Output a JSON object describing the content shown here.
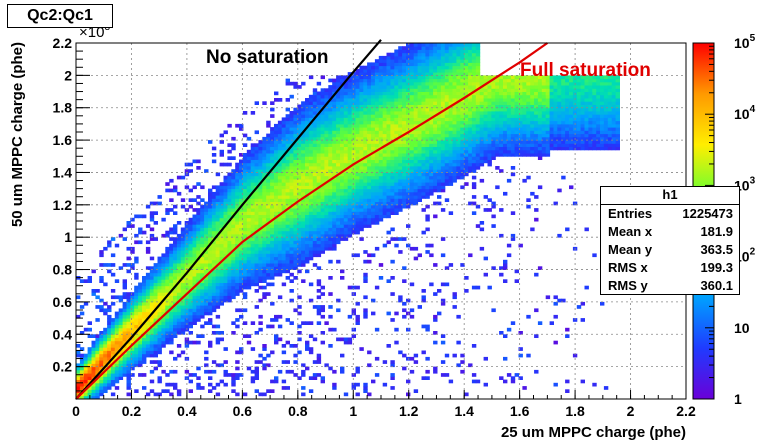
{
  "chart_data": {
    "type": "heatmap",
    "title": "Qc2:Qc1",
    "xlabel": "25 um MPPC charge (phe)",
    "ylabel": "50 um MPPC charge (phe)",
    "y_multiplier": "×10",
    "y_multiplier_exp": "3",
    "xlim": [
      0,
      2.2
    ],
    "ylim": [
      0,
      2.2
    ],
    "x_ticks": [
      "0",
      "0.2",
      "0.4",
      "0.6",
      "0.8",
      "1",
      "1.2",
      "1.4",
      "1.6",
      "1.8",
      "2",
      "2.2"
    ],
    "y_ticks": [
      "0.2",
      "0.4",
      "0.6",
      "0.8",
      "1",
      "1.2",
      "1.4",
      "1.6",
      "1.8",
      "2",
      "2.2"
    ],
    "grid": true,
    "log_z": true,
    "zlim": [
      1,
      100000
    ],
    "z_ticks": [
      "1",
      "10",
      "10",
      "10",
      "10",
      "10"
    ],
    "z_ticks_exp": [
      "",
      "",
      "2",
      "3",
      "4",
      "5"
    ],
    "palette": [
      "#6a00d8",
      "#1f3bff",
      "#00a0ff",
      "#00e0b0",
      "#66ff33",
      "#ffee00",
      "#ff9900",
      "#ff0000"
    ],
    "annotations": [
      {
        "text": "No saturation",
        "color": "#000000"
      },
      {
        "text": "Full saturation",
        "color": "#e00000"
      }
    ],
    "curves": [
      {
        "name": "No saturation",
        "color": "#000000",
        "x": [
          0,
          0.2,
          0.4,
          0.6,
          0.8,
          1.0,
          1.1
        ],
        "y": [
          0,
          0.38,
          0.78,
          1.2,
          1.61,
          2.02,
          2.22
        ]
      },
      {
        "name": "Full saturation",
        "color": "#e00000",
        "x": [
          0,
          0.2,
          0.4,
          0.6,
          0.8,
          1.0,
          1.2,
          1.4,
          1.6,
          1.7
        ],
        "y": [
          0,
          0.33,
          0.65,
          0.97,
          1.22,
          1.45,
          1.65,
          1.86,
          2.08,
          2.2
        ]
      }
    ],
    "stats": {
      "name": "h1",
      "rows": [
        {
          "label": "Entries",
          "value": "1225473"
        },
        {
          "label": "Mean x",
          "value": "181.9"
        },
        {
          "label": "Mean y",
          "value": "363.5"
        },
        {
          "label": "RMS x",
          "value": "199.3"
        },
        {
          "label": "RMS y",
          "value": "360.1"
        }
      ]
    }
  }
}
